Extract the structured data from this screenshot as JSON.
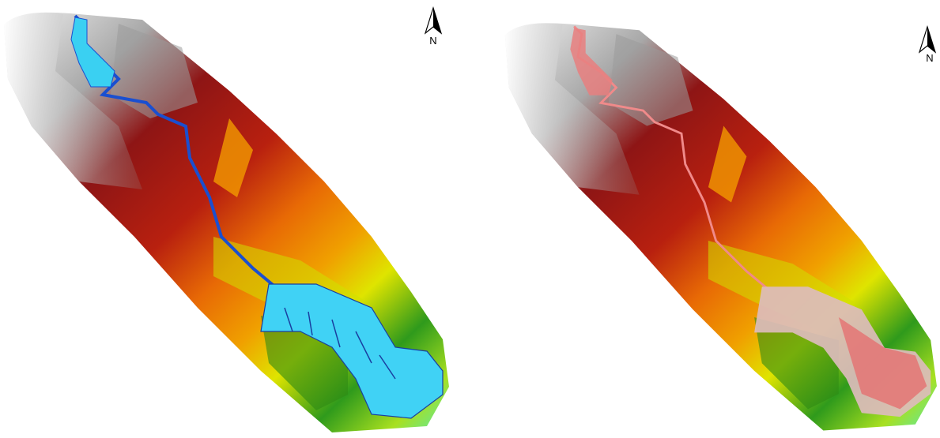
{
  "maps": [
    {
      "north_arrow": "N"
    },
    {
      "north_arrow": "N"
    }
  ]
}
